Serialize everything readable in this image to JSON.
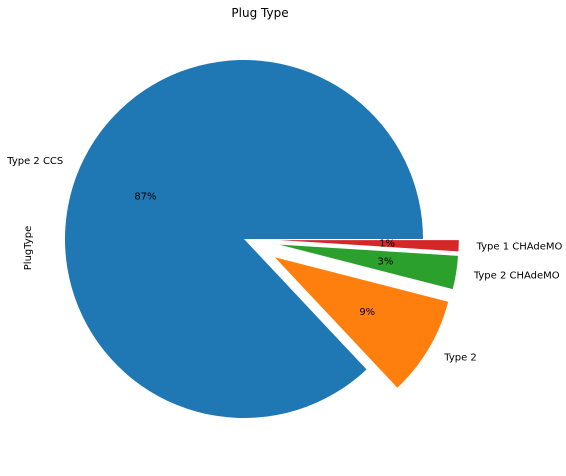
{
  "chart_data": {
    "type": "pie",
    "title": "Plug Type",
    "ylabel": "PlugType",
    "legend": "none",
    "start_angle_deg": 0,
    "direction": "counterclockwise",
    "slices": [
      {
        "label": "Type 2 CCS",
        "value": 87,
        "pct_label": "87%",
        "color": "#1f77b4",
        "exploded": false
      },
      {
        "label": "Type 2",
        "value": 9,
        "pct_label": "9%",
        "color": "#ff7f0e",
        "exploded": true
      },
      {
        "label": "Type 2 CHAdeMO",
        "value": 3,
        "pct_label": "3%",
        "color": "#2ca02c",
        "exploded": true
      },
      {
        "label": "Type 1 CHAdeMO",
        "value": 1,
        "pct_label": "1%",
        "color": "#d62728",
        "exploded": true
      }
    ]
  }
}
